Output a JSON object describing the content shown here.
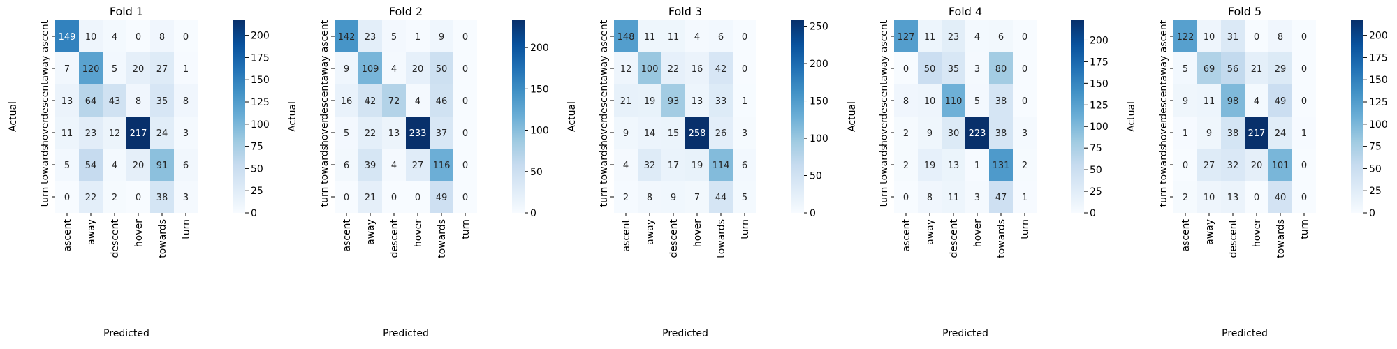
{
  "chart_data": [
    {
      "type": "heatmap",
      "title": "Fold 1",
      "xlabel": "Predicted",
      "ylabel": "Actual",
      "x_categories": [
        "ascent",
        "away",
        "descent",
        "hover",
        "towards",
        "turn"
      ],
      "y_categories": [
        "ascent",
        "away",
        "descent",
        "hover",
        "towards",
        "turn"
      ],
      "values": [
        [
          149,
          10,
          4,
          0,
          8,
          0
        ],
        [
          7,
          120,
          5,
          20,
          27,
          1
        ],
        [
          13,
          64,
          43,
          8,
          35,
          8
        ],
        [
          11,
          23,
          12,
          217,
          24,
          3
        ],
        [
          5,
          54,
          4,
          20,
          91,
          6
        ],
        [
          0,
          22,
          2,
          0,
          38,
          3
        ]
      ],
      "colorbar": {
        "min": 0,
        "max": 217,
        "ticks": [
          0,
          25,
          50,
          75,
          100,
          125,
          150,
          175,
          200
        ]
      },
      "colormap": "Blues"
    },
    {
      "type": "heatmap",
      "title": "Fold 2",
      "xlabel": "Predicted",
      "ylabel": "Actual",
      "x_categories": [
        "ascent",
        "away",
        "descent",
        "hover",
        "towards",
        "turn"
      ],
      "y_categories": [
        "ascent",
        "away",
        "descent",
        "hover",
        "towards",
        "turn"
      ],
      "values": [
        [
          142,
          23,
          5,
          1,
          9,
          0
        ],
        [
          9,
          109,
          4,
          20,
          50,
          0
        ],
        [
          16,
          42,
          72,
          4,
          46,
          0
        ],
        [
          5,
          22,
          13,
          233,
          37,
          0
        ],
        [
          6,
          39,
          4,
          27,
          116,
          0
        ],
        [
          0,
          21,
          0,
          0,
          49,
          0
        ]
      ],
      "colorbar": {
        "min": 0,
        "max": 233,
        "ticks": [
          0,
          50,
          100,
          150,
          200
        ]
      },
      "colormap": "Blues"
    },
    {
      "type": "heatmap",
      "title": "Fold 3",
      "xlabel": "Predicted",
      "ylabel": "Actual",
      "x_categories": [
        "ascent",
        "away",
        "descent",
        "hover",
        "towards",
        "turn"
      ],
      "y_categories": [
        "ascent",
        "away",
        "descent",
        "hover",
        "towards",
        "turn"
      ],
      "values": [
        [
          148,
          11,
          11,
          4,
          6,
          0
        ],
        [
          12,
          100,
          22,
          16,
          42,
          0
        ],
        [
          21,
          19,
          93,
          13,
          33,
          1
        ],
        [
          9,
          14,
          15,
          258,
          26,
          3
        ],
        [
          4,
          32,
          17,
          19,
          114,
          6
        ],
        [
          2,
          8,
          9,
          7,
          44,
          5
        ]
      ],
      "colorbar": {
        "min": 0,
        "max": 258,
        "ticks": [
          0,
          50,
          100,
          150,
          200,
          250
        ]
      },
      "colormap": "Blues"
    },
    {
      "type": "heatmap",
      "title": "Fold 4",
      "xlabel": "Predicted",
      "ylabel": "Actual",
      "x_categories": [
        "ascent",
        "away",
        "descent",
        "hover",
        "towards",
        "turn"
      ],
      "y_categories": [
        "ascent",
        "away",
        "descent",
        "hover",
        "towards",
        "turn"
      ],
      "values": [
        [
          127,
          11,
          23,
          4,
          6,
          0
        ],
        [
          0,
          50,
          35,
          3,
          80,
          0
        ],
        [
          8,
          10,
          110,
          5,
          38,
          0
        ],
        [
          2,
          9,
          30,
          223,
          38,
          3
        ],
        [
          2,
          19,
          13,
          1,
          131,
          2
        ],
        [
          0,
          8,
          11,
          3,
          47,
          1
        ]
      ],
      "colorbar": {
        "min": 0,
        "max": 223,
        "ticks": [
          0,
          25,
          50,
          75,
          100,
          125,
          150,
          175,
          200
        ]
      },
      "colormap": "Blues"
    },
    {
      "type": "heatmap",
      "title": "Fold 5",
      "xlabel": "Predicted",
      "ylabel": "Actual",
      "x_categories": [
        "ascent",
        "away",
        "descent",
        "hover",
        "towards",
        "turn"
      ],
      "y_categories": [
        "ascent",
        "away",
        "descent",
        "hover",
        "towards",
        "turn"
      ],
      "values": [
        [
          122,
          10,
          31,
          0,
          8,
          0
        ],
        [
          5,
          69,
          56,
          21,
          29,
          0
        ],
        [
          9,
          11,
          98,
          4,
          49,
          0
        ],
        [
          1,
          9,
          38,
          217,
          24,
          1
        ],
        [
          0,
          27,
          32,
          20,
          101,
          0
        ],
        [
          2,
          10,
          13,
          0,
          40,
          0
        ]
      ],
      "colorbar": {
        "min": 0,
        "max": 217,
        "ticks": [
          0,
          25,
          50,
          75,
          100,
          125,
          150,
          175,
          200
        ]
      },
      "colormap": "Blues"
    }
  ]
}
